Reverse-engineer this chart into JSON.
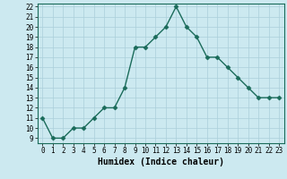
{
  "x": [
    0,
    1,
    2,
    3,
    4,
    5,
    6,
    7,
    8,
    9,
    10,
    11,
    12,
    13,
    14,
    15,
    16,
    17,
    18,
    19,
    20,
    21,
    22,
    23
  ],
  "y": [
    11,
    9,
    9,
    10,
    10,
    11,
    12,
    12,
    14,
    18,
    18,
    19,
    20,
    22,
    20,
    19,
    17,
    17,
    16,
    15,
    14,
    13,
    13,
    13
  ],
  "xlabel": "Humidex (Indice chaleur)",
  "ylim_min": 9,
  "ylim_max": 22,
  "xlim_min": -0.5,
  "xlim_max": 23.5,
  "yticks": [
    9,
    10,
    11,
    12,
    13,
    14,
    15,
    16,
    17,
    18,
    19,
    20,
    21,
    22
  ],
  "xticks": [
    0,
    1,
    2,
    3,
    4,
    5,
    6,
    7,
    8,
    9,
    10,
    11,
    12,
    13,
    14,
    15,
    16,
    17,
    18,
    19,
    20,
    21,
    22,
    23
  ],
  "line_color": "#1a6b5a",
  "marker": "D",
  "marker_size": 2.5,
  "bg_color": "#cce9f0",
  "grid_color": "#aacfda",
  "tick_fontsize": 5.5,
  "xlabel_fontsize": 7,
  "linewidth": 1.0
}
